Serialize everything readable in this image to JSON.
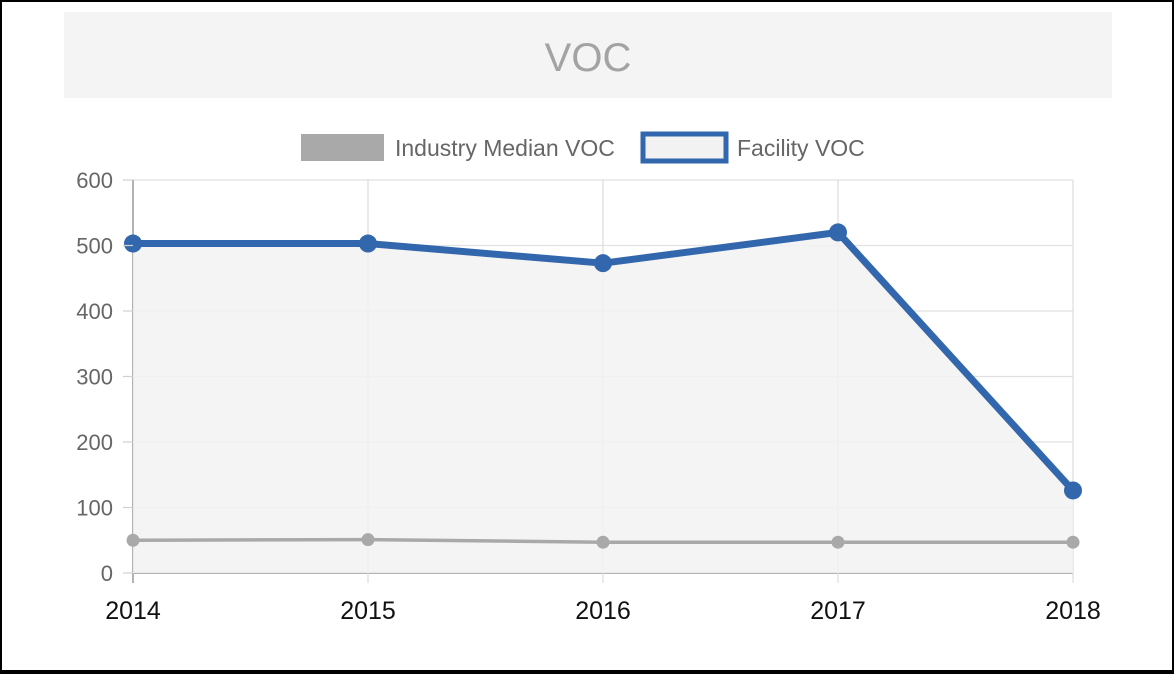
{
  "title": "VOC",
  "chart_data": {
    "type": "line",
    "categories": [
      "2014",
      "2015",
      "2016",
      "2017",
      "2018"
    ],
    "series": [
      {
        "name": "Industry Median VOC",
        "values": [
          50,
          51,
          47,
          47,
          47
        ],
        "color": "#a9a9a9"
      },
      {
        "name": "Facility VOC",
        "values": [
          503,
          503,
          473,
          520,
          126
        ],
        "color": "#3367ad",
        "fill": "#f2f2f2"
      }
    ],
    "ylim": [
      0,
      600
    ],
    "yticks": [
      "0",
      "100",
      "200",
      "300",
      "400",
      "500",
      "600"
    ],
    "legend_position": "top",
    "grid": true
  }
}
